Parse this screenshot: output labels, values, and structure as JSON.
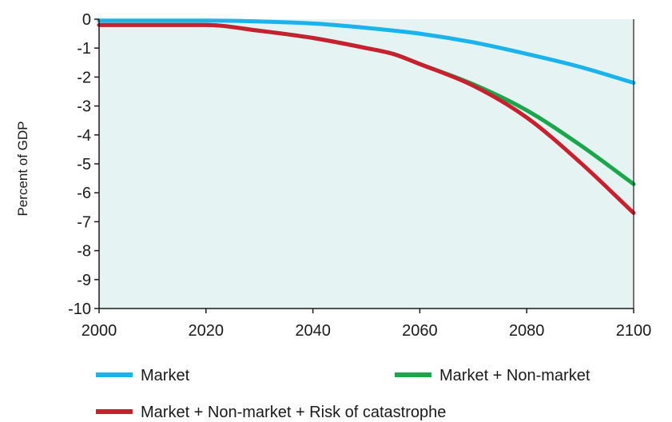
{
  "chart_data": {
    "type": "line",
    "title": "",
    "xlabel": "",
    "ylabel": "Percent of GDP",
    "xlim": [
      2000,
      2100
    ],
    "ylim": [
      -10,
      0
    ],
    "x_ticks": [
      2000,
      2020,
      2040,
      2060,
      2080,
      2100
    ],
    "y_ticks": [
      0,
      -1,
      -2,
      -3,
      -4,
      -5,
      -6,
      -7,
      -8,
      -9,
      -10
    ],
    "grid": false,
    "legend_position": "bottom",
    "plot_background": "#e6f3f3",
    "series": [
      {
        "name": "Market",
        "color": "#19b4ec",
        "x": [
          2000,
          2010,
          2020,
          2030,
          2040,
          2050,
          2060,
          2070,
          2080,
          2090,
          2100
        ],
        "y": [
          -0.05,
          -0.05,
          -0.05,
          -0.08,
          -0.15,
          -0.3,
          -0.5,
          -0.8,
          -1.2,
          -1.65,
          -2.2
        ]
      },
      {
        "name": "Market + Non-market",
        "color": "#1aa64b",
        "x": [
          2000,
          2010,
          2020,
          2030,
          2040,
          2050,
          2055,
          2060,
          2070,
          2080,
          2090,
          2100
        ],
        "y": [
          -0.2,
          -0.2,
          -0.2,
          -0.4,
          -0.65,
          -1.0,
          -1.2,
          -1.55,
          -2.25,
          -3.15,
          -4.35,
          -5.7
        ]
      },
      {
        "name": "Market + Non-market + Risk of catastrophe",
        "color": "#c8202f",
        "x": [
          2000,
          2010,
          2020,
          2030,
          2040,
          2050,
          2055,
          2060,
          2070,
          2080,
          2090,
          2100
        ],
        "y": [
          -0.2,
          -0.2,
          -0.2,
          -0.4,
          -0.65,
          -1.0,
          -1.2,
          -1.55,
          -2.3,
          -3.4,
          -4.95,
          -6.7
        ]
      }
    ]
  }
}
